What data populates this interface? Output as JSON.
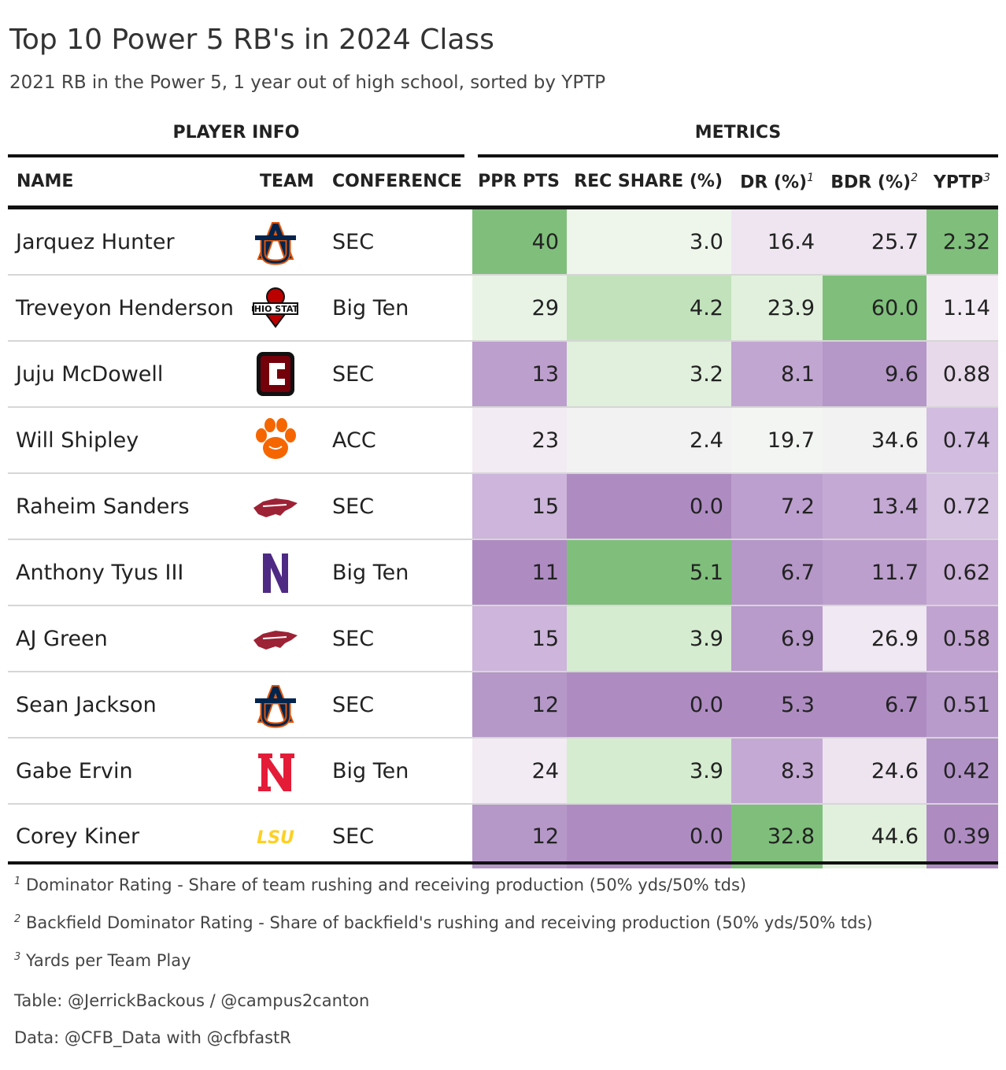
{
  "header": {
    "title": "Top 10 Power 5 RB's in 2024 Class",
    "subtitle": "2021 RB in the Power 5, 1 year out of high school, sorted by YPTP"
  },
  "spanners": {
    "player_info": "PLAYER INFO",
    "metrics": "METRICS"
  },
  "columns": {
    "name": "NAME",
    "team": "TEAM",
    "conference": "CONFERENCE",
    "ppr": "PPR PTS",
    "rec_share": "REC SHARE (%)",
    "dr": "DR (%)",
    "dr_note": "1",
    "bdr": "BDR (%)",
    "bdr_note": "2",
    "yptp": "YPTP",
    "yptp_note": "3"
  },
  "chart_data": {
    "type": "table",
    "columns": [
      "NAME",
      "TEAM",
      "CONFERENCE",
      "PPR PTS",
      "REC SHARE (%)",
      "DR (%)",
      "BDR (%)",
      "YPTP"
    ],
    "rows": [
      {
        "name": "Jarquez Hunter",
        "team_icon": "auburn-logo",
        "conference": "SEC",
        "ppr": "40",
        "rec_share": "3.0",
        "dr": "16.4",
        "bdr": "25.7",
        "yptp": "2.32"
      },
      {
        "name": "Treveyon Henderson",
        "team_icon": "ohio-state-logo",
        "conference": "Big Ten",
        "ppr": "29",
        "rec_share": "4.2",
        "dr": "23.9",
        "bdr": "60.0",
        "yptp": "1.14"
      },
      {
        "name": "Juju McDowell",
        "team_icon": "south-carolina-logo",
        "conference": "SEC",
        "ppr": "13",
        "rec_share": "3.2",
        "dr": "8.1",
        "bdr": "9.6",
        "yptp": "0.88"
      },
      {
        "name": "Will Shipley",
        "team_icon": "clemson-logo",
        "conference": "ACC",
        "ppr": "23",
        "rec_share": "2.4",
        "dr": "19.7",
        "bdr": "34.6",
        "yptp": "0.74"
      },
      {
        "name": "Raheim Sanders",
        "team_icon": "arkansas-logo",
        "conference": "SEC",
        "ppr": "15",
        "rec_share": "0.0",
        "dr": "7.2",
        "bdr": "13.4",
        "yptp": "0.72"
      },
      {
        "name": "Anthony Tyus III",
        "team_icon": "northwestern-logo",
        "conference": "Big Ten",
        "ppr": "11",
        "rec_share": "5.1",
        "dr": "6.7",
        "bdr": "11.7",
        "yptp": "0.62"
      },
      {
        "name": "AJ Green",
        "team_icon": "arkansas-logo",
        "conference": "SEC",
        "ppr": "15",
        "rec_share": "3.9",
        "dr": "6.9",
        "bdr": "26.9",
        "yptp": "0.58"
      },
      {
        "name": "Sean Jackson",
        "team_icon": "auburn-logo",
        "conference": "SEC",
        "ppr": "12",
        "rec_share": "0.0",
        "dr": "5.3",
        "bdr": "6.7",
        "yptp": "0.51"
      },
      {
        "name": "Gabe Ervin",
        "team_icon": "nebraska-logo",
        "conference": "Big Ten",
        "ppr": "24",
        "rec_share": "3.9",
        "dr": "8.3",
        "bdr": "24.6",
        "yptp": "0.42"
      },
      {
        "name": "Corey Kiner",
        "team_icon": "lsu-logo",
        "conference": "SEC",
        "ppr": "12",
        "rec_share": "0.0",
        "dr": "32.8",
        "bdr": "44.6",
        "yptp": "0.39"
      }
    ],
    "color_scale": {
      "low": "#ae8cc2",
      "mid": "#f5f5f5",
      "high": "#7fbf7b"
    }
  },
  "footnotes": {
    "n1": "1",
    "n1_text": "Dominator Rating - Share of team rushing and receiving production (50% yds/50% tds)",
    "n2": "2",
    "n2_text": "Backfield Dominator Rating - Share of backfield's rushing and receiving production (50% yds/50% tds)",
    "n3": "3",
    "n3_text": "Yards per Team Play"
  },
  "source": {
    "table": "Table: @JerrickBackous / @campus2canton",
    "data": "Data: @CFB_Data with @cfbfastR"
  }
}
